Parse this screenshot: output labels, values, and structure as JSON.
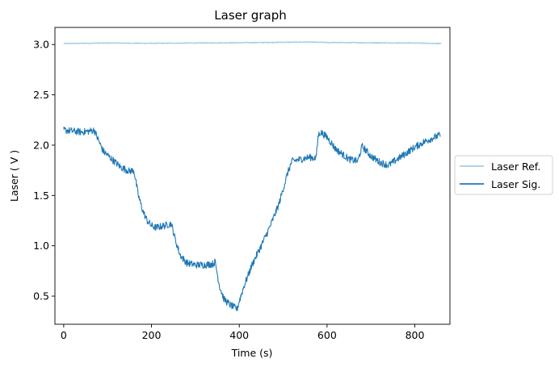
{
  "chart_data": {
    "type": "line",
    "title": "Laser graph",
    "xlabel": "Time (s)",
    "ylabel": "Laser ( V )",
    "xlim": [
      -20,
      880
    ],
    "ylim": [
      0.22,
      3.17
    ],
    "xticks": [
      0,
      200,
      400,
      600,
      800
    ],
    "yticks": [
      0.5,
      1.0,
      1.5,
      2.0,
      2.5,
      3.0
    ],
    "xtick_labels": [
      "0",
      "200",
      "400",
      "600",
      "800"
    ],
    "ytick_labels": [
      "0.5",
      "1.0",
      "1.5",
      "2.0",
      "2.5",
      "3.0"
    ],
    "grid": false,
    "legend_placement": "outside-right",
    "series": [
      {
        "name": "Laser Ref.",
        "color": "#a6cee3",
        "x": [
          0,
          100,
          200,
          300,
          400,
          500,
          550,
          600,
          700,
          800,
          860
        ],
        "y": [
          3.01,
          3.015,
          3.012,
          3.015,
          3.018,
          3.022,
          3.025,
          3.02,
          3.018,
          3.015,
          3.01
        ],
        "noise": 0.004
      },
      {
        "name": "Laser Sig.",
        "color": "#1f78b4",
        "x": [
          0,
          20,
          40,
          60,
          70,
          75,
          90,
          110,
          130,
          150,
          160,
          170,
          180,
          190,
          200,
          210,
          230,
          245,
          255,
          265,
          280,
          300,
          320,
          340,
          345,
          355,
          365,
          380,
          395,
          400,
          410,
          430,
          450,
          470,
          490,
          510,
          520,
          540,
          560,
          575,
          580,
          585,
          600,
          620,
          650,
          670,
          680,
          700,
          720,
          740,
          760,
          780,
          800,
          820,
          840,
          858
        ],
        "y": [
          2.15,
          2.14,
          2.13,
          2.14,
          2.15,
          2.09,
          1.94,
          1.86,
          1.78,
          1.74,
          1.75,
          1.5,
          1.35,
          1.25,
          1.2,
          1.18,
          1.2,
          1.22,
          1.05,
          0.91,
          0.83,
          0.81,
          0.81,
          0.82,
          0.84,
          0.6,
          0.47,
          0.41,
          0.37,
          0.45,
          0.59,
          0.82,
          1.0,
          1.19,
          1.41,
          1.72,
          1.84,
          1.86,
          1.88,
          1.87,
          2.1,
          2.13,
          2.08,
          1.96,
          1.86,
          1.84,
          1.99,
          1.89,
          1.83,
          1.8,
          1.86,
          1.92,
          1.98,
          2.03,
          2.07,
          2.1
        ],
        "noise": 0.035
      }
    ]
  }
}
